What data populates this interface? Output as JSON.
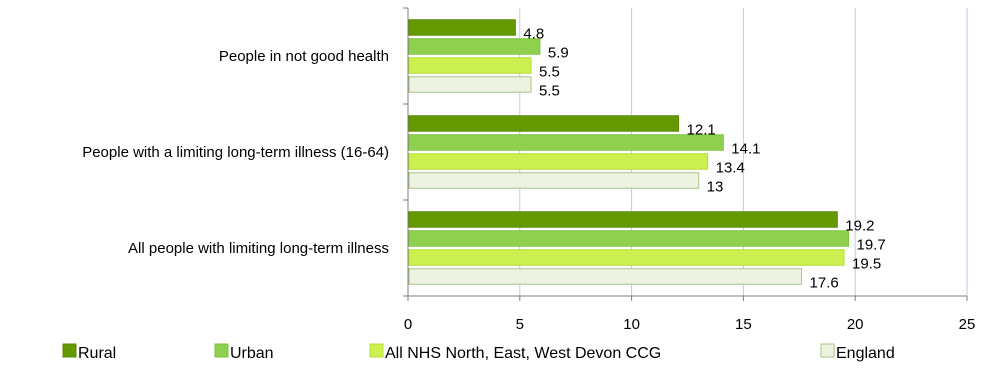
{
  "chart_data": {
    "type": "bar",
    "orientation": "horizontal",
    "categories": [
      "People in not good health",
      "People with a limiting long-term illness (16-64)",
      "All people with limiting long-term illness"
    ],
    "series": [
      {
        "name": "Rural",
        "values": [
          4.8,
          12.1,
          19.2
        ],
        "color": "#669900",
        "border": "#5a8a00"
      },
      {
        "name": "Urban",
        "values": [
          5.9,
          14.1,
          19.7
        ],
        "color": "#8fd14f",
        "border": "#7cc23c"
      },
      {
        "name": "All NHS North, East, West Devon CCG",
        "values": [
          5.5,
          13.4,
          19.5
        ],
        "color": "#ccf04f",
        "border": "#b5dd37"
      },
      {
        "name": "England",
        "values": [
          5.5,
          13,
          17.6
        ],
        "color": "#eef2e0",
        "border": "#a9c48a"
      }
    ],
    "data_labels": [
      [
        "4.8",
        "12.1",
        "19.2"
      ],
      [
        "5.9",
        "14.1",
        "19.7"
      ],
      [
        "5.5",
        "13.4",
        "19.5"
      ],
      [
        "5.5",
        "13",
        "17.6"
      ]
    ],
    "xlim": [
      0,
      25
    ],
    "xticks": [
      0,
      5,
      10,
      15,
      20,
      25
    ],
    "grid": true,
    "legend_position": "bottom"
  }
}
